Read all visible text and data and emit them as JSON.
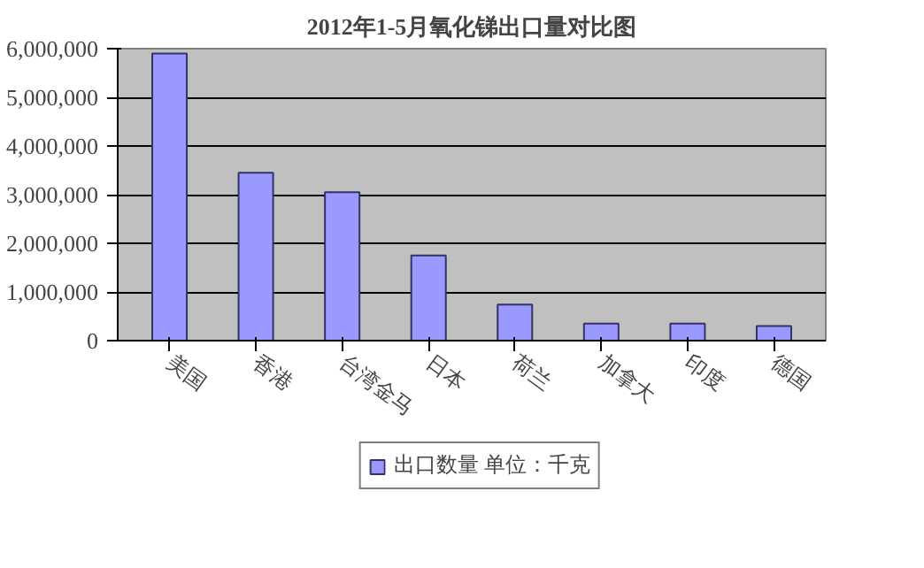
{
  "chart_data": {
    "type": "bar",
    "title": "2012年1-5月氧化锑出口量对比图",
    "categories": [
      "美国",
      "香港",
      "台湾金马",
      "日本",
      "荷兰",
      "加拿大",
      "印度",
      "德国"
    ],
    "series": [
      {
        "name": "出口数量 单位：千克",
        "color": "#9999ff",
        "values": [
          5900000,
          3450000,
          3050000,
          1750000,
          740000,
          350000,
          350000,
          300000
        ]
      }
    ],
    "ylim": [
      0,
      6000000
    ],
    "yticks": [
      0,
      {
        "value": 1000000,
        "label": "1,000,000"
      },
      {
        "value": 2000000,
        "label": "2,000,000"
      },
      {
        "value": 3000000,
        "label": "3,000,000"
      },
      {
        "value": 4000000,
        "label": "4,000,000"
      },
      {
        "value": 5000000,
        "label": "5,000,000"
      },
      {
        "value": 6000000,
        "label": "6,000,000"
      }
    ],
    "grid": "y",
    "legend": "bottom"
  }
}
